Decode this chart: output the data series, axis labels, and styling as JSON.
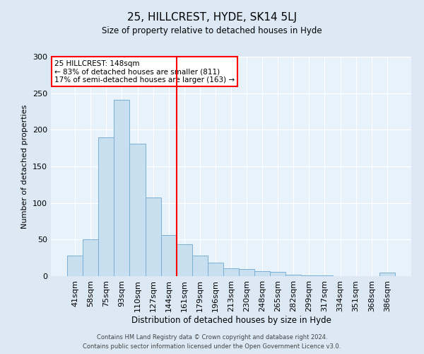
{
  "title": "25, HILLCREST, HYDE, SK14 5LJ",
  "subtitle": "Size of property relative to detached houses in Hyde",
  "xlabel": "Distribution of detached houses by size in Hyde",
  "ylabel": "Number of detached properties",
  "bar_labels": [
    "41sqm",
    "58sqm",
    "75sqm",
    "93sqm",
    "110sqm",
    "127sqm",
    "144sqm",
    "161sqm",
    "179sqm",
    "196sqm",
    "213sqm",
    "230sqm",
    "248sqm",
    "265sqm",
    "282sqm",
    "299sqm",
    "317sqm",
    "334sqm",
    "351sqm",
    "368sqm",
    "386sqm"
  ],
  "bar_values": [
    28,
    50,
    190,
    241,
    181,
    107,
    56,
    44,
    28,
    18,
    11,
    10,
    7,
    6,
    2,
    1,
    1,
    0,
    0,
    0,
    5
  ],
  "bar_color": "#c8dff0",
  "bar_edge_color": "#7ab0d4",
  "vline_x": 6.5,
  "vline_color": "red",
  "annotation_line1": "25 HILLCREST: 148sqm",
  "annotation_line2": "← 83% of detached houses are smaller (811)",
  "annotation_line3": "17% of semi-detached houses are larger (163) →",
  "annotation_box_color": "red",
  "ylim": [
    0,
    300
  ],
  "yticks": [
    0,
    50,
    100,
    150,
    200,
    250,
    300
  ],
  "footer1": "Contains HM Land Registry data © Crown copyright and database right 2024.",
  "footer2": "Contains public sector information licensed under the Open Government Licence v3.0.",
  "bg_color": "#dce9f5",
  "plot_bg_color": "#e8f2fb"
}
